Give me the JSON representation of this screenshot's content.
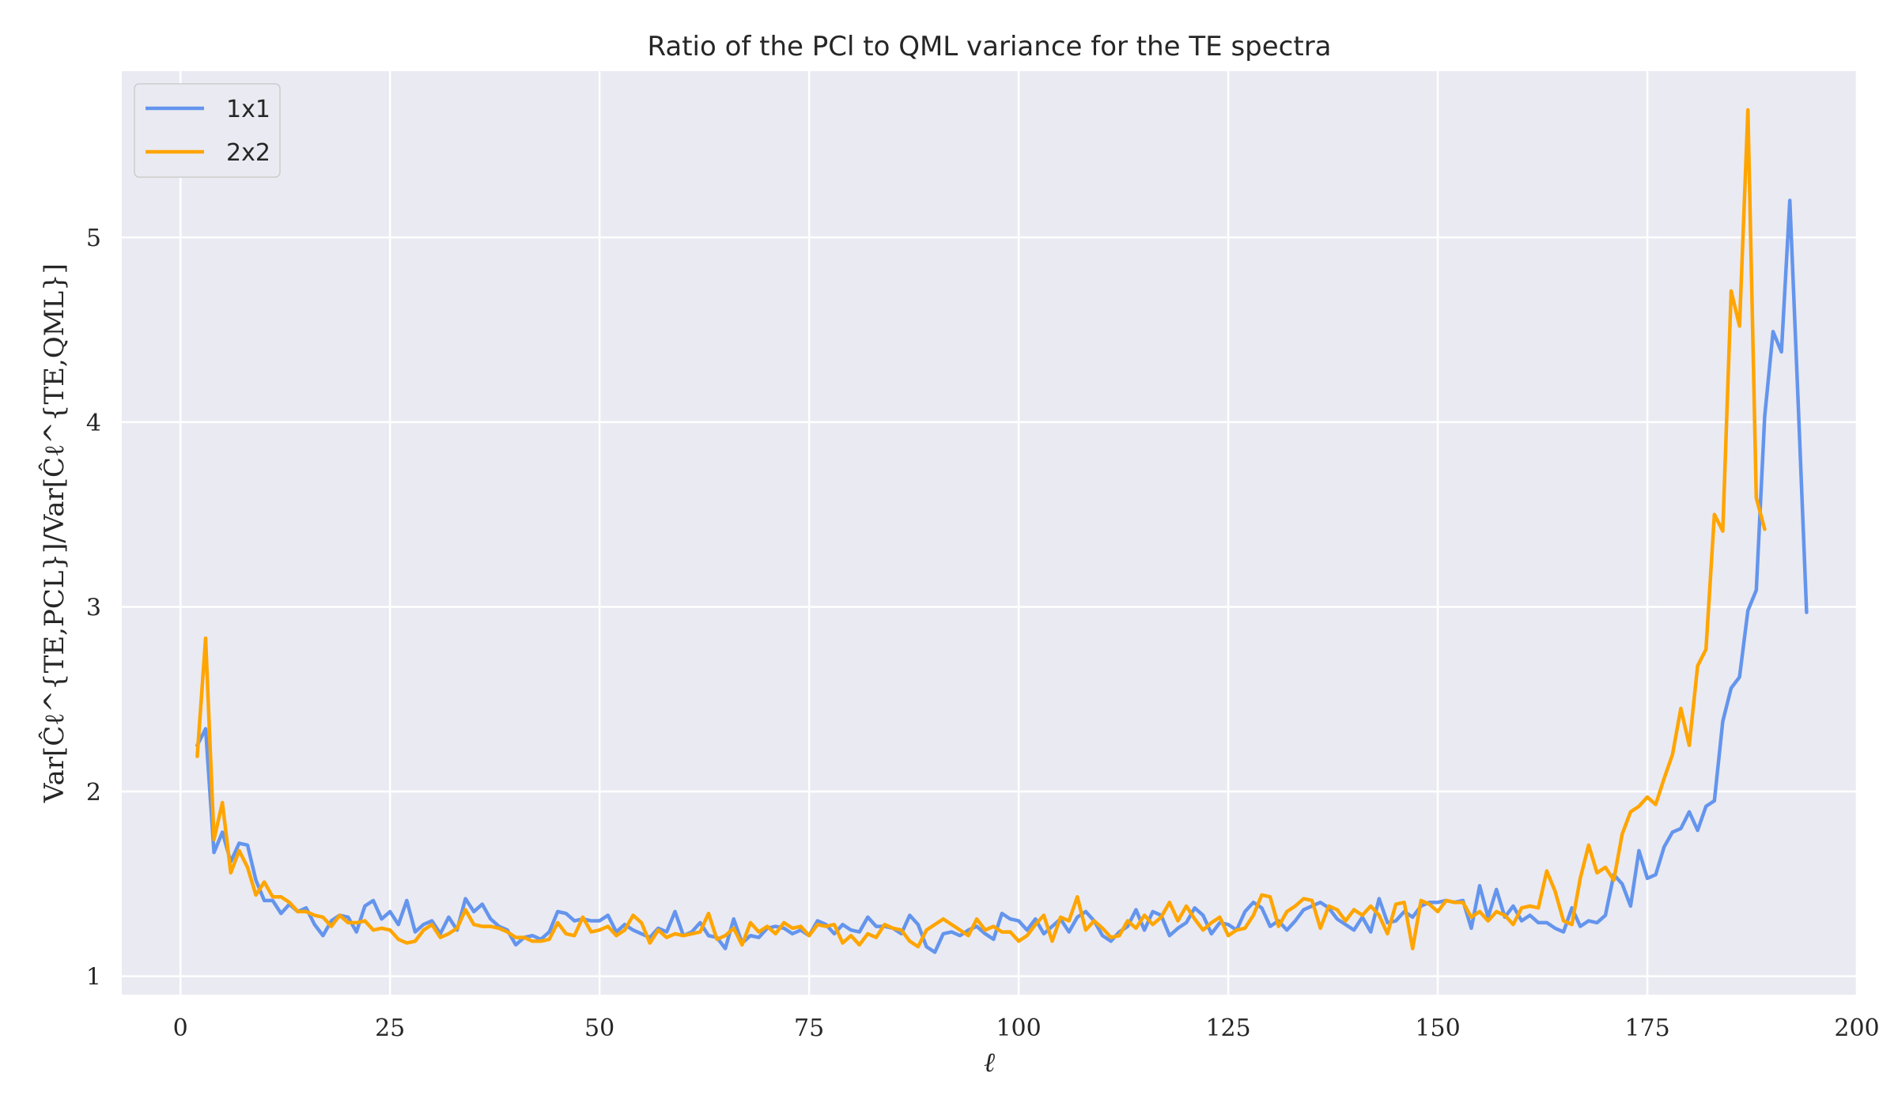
{
  "chart_data": {
    "type": "line",
    "title": "Ratio of the PCl to QML variance for the TE spectra",
    "xlabel": "ℓ",
    "ylabel": "Var[Ĉℓ^{TE,PCL}]/Var[Ĉℓ^{TE,QML}]",
    "xlim": [
      -7,
      200
    ],
    "ylim": [
      0.9,
      5.9
    ],
    "xticks": [
      0,
      25,
      50,
      75,
      100,
      125,
      150,
      175,
      200
    ],
    "yticks": [
      1,
      2,
      3,
      4,
      5
    ],
    "grid": true,
    "legend_position": "top-left",
    "background": "#eaeaf2",
    "x_start": 2,
    "series": [
      {
        "name": "1x1",
        "color": "#6495ED",
        "values": [
          2.25,
          2.34,
          1.67,
          1.78,
          1.62,
          1.72,
          1.71,
          1.52,
          1.41,
          1.41,
          1.34,
          1.39,
          1.35,
          1.37,
          1.28,
          1.22,
          1.3,
          1.33,
          1.32,
          1.24,
          1.38,
          1.41,
          1.31,
          1.35,
          1.28,
          1.41,
          1.24,
          1.28,
          1.3,
          1.23,
          1.32,
          1.25,
          1.42,
          1.35,
          1.39,
          1.31,
          1.27,
          1.25,
          1.17,
          1.21,
          1.22,
          1.2,
          1.24,
          1.35,
          1.34,
          1.3,
          1.31,
          1.3,
          1.3,
          1.33,
          1.24,
          1.28,
          1.25,
          1.23,
          1.21,
          1.26,
          1.24,
          1.35,
          1.22,
          1.24,
          1.29,
          1.22,
          1.21,
          1.15,
          1.31,
          1.18,
          1.22,
          1.21,
          1.26,
          1.27,
          1.26,
          1.23,
          1.25,
          1.22,
          1.3,
          1.28,
          1.23,
          1.28,
          1.25,
          1.24,
          1.32,
          1.27,
          1.27,
          1.26,
          1.23,
          1.33,
          1.28,
          1.16,
          1.13,
          1.23,
          1.24,
          1.22,
          1.25,
          1.27,
          1.23,
          1.2,
          1.34,
          1.31,
          1.3,
          1.25,
          1.31,
          1.23,
          1.27,
          1.31,
          1.24,
          1.32,
          1.35,
          1.3,
          1.22,
          1.19,
          1.24,
          1.27,
          1.36,
          1.25,
          1.35,
          1.33,
          1.22,
          1.26,
          1.29,
          1.37,
          1.33,
          1.23,
          1.29,
          1.28,
          1.25,
          1.35,
          1.4,
          1.37,
          1.27,
          1.3,
          1.25,
          1.3,
          1.36,
          1.38,
          1.4,
          1.37,
          1.31,
          1.28,
          1.25,
          1.32,
          1.24,
          1.42,
          1.29,
          1.3,
          1.35,
          1.32,
          1.38,
          1.4,
          1.4,
          1.41,
          1.4,
          1.41,
          1.26,
          1.49,
          1.32,
          1.47,
          1.32,
          1.38,
          1.3,
          1.33,
          1.29,
          1.29,
          1.26,
          1.24,
          1.37,
          1.27,
          1.3,
          1.29,
          1.33,
          1.55,
          1.5,
          1.38,
          1.68,
          1.53,
          1.55,
          1.7,
          1.78,
          1.8,
          1.89,
          1.79,
          1.92,
          1.95,
          2.38,
          2.56,
          2.62,
          2.98,
          3.09,
          4.03,
          4.49,
          4.38,
          5.2,
          4.1,
          2.97
        ]
      },
      {
        "name": "2x2",
        "color": "#FFA500",
        "values": [
          2.19,
          2.83,
          1.74,
          1.94,
          1.56,
          1.68,
          1.59,
          1.44,
          1.51,
          1.43,
          1.43,
          1.4,
          1.35,
          1.35,
          1.33,
          1.32,
          1.27,
          1.33,
          1.29,
          1.29,
          1.3,
          1.25,
          1.26,
          1.25,
          1.2,
          1.18,
          1.19,
          1.25,
          1.28,
          1.21,
          1.23,
          1.26,
          1.36,
          1.28,
          1.27,
          1.27,
          1.26,
          1.24,
          1.21,
          1.21,
          1.19,
          1.19,
          1.2,
          1.29,
          1.23,
          1.22,
          1.32,
          1.24,
          1.25,
          1.27,
          1.22,
          1.25,
          1.33,
          1.29,
          1.18,
          1.25,
          1.21,
          1.23,
          1.22,
          1.23,
          1.24,
          1.34,
          1.2,
          1.22,
          1.26,
          1.17,
          1.29,
          1.24,
          1.27,
          1.23,
          1.29,
          1.26,
          1.27,
          1.22,
          1.28,
          1.27,
          1.28,
          1.18,
          1.22,
          1.17,
          1.23,
          1.21,
          1.28,
          1.26,
          1.25,
          1.19,
          1.16,
          1.25,
          1.28,
          1.31,
          1.28,
          1.25,
          1.22,
          1.31,
          1.25,
          1.27,
          1.24,
          1.24,
          1.19,
          1.22,
          1.28,
          1.33,
          1.19,
          1.32,
          1.3,
          1.43,
          1.25,
          1.3,
          1.26,
          1.21,
          1.22,
          1.3,
          1.26,
          1.33,
          1.28,
          1.32,
          1.4,
          1.3,
          1.38,
          1.31,
          1.25,
          1.29,
          1.32,
          1.22,
          1.25,
          1.26,
          1.33,
          1.44,
          1.43,
          1.27,
          1.35,
          1.38,
          1.42,
          1.41,
          1.26,
          1.38,
          1.36,
          1.3,
          1.36,
          1.33,
          1.38,
          1.33,
          1.23,
          1.39,
          1.4,
          1.15,
          1.41,
          1.39,
          1.35,
          1.41,
          1.4,
          1.4,
          1.32,
          1.35,
          1.3,
          1.35,
          1.33,
          1.28,
          1.37,
          1.38,
          1.37,
          1.57,
          1.46,
          1.3,
          1.28,
          1.53,
          1.71,
          1.56,
          1.59,
          1.52,
          1.77,
          1.89,
          1.92,
          1.97,
          1.93,
          2.07,
          2.2,
          2.45,
          2.25,
          2.68,
          2.77,
          3.5,
          3.41,
          4.71,
          4.52,
          5.69,
          3.59,
          3.42
        ]
      }
    ]
  }
}
